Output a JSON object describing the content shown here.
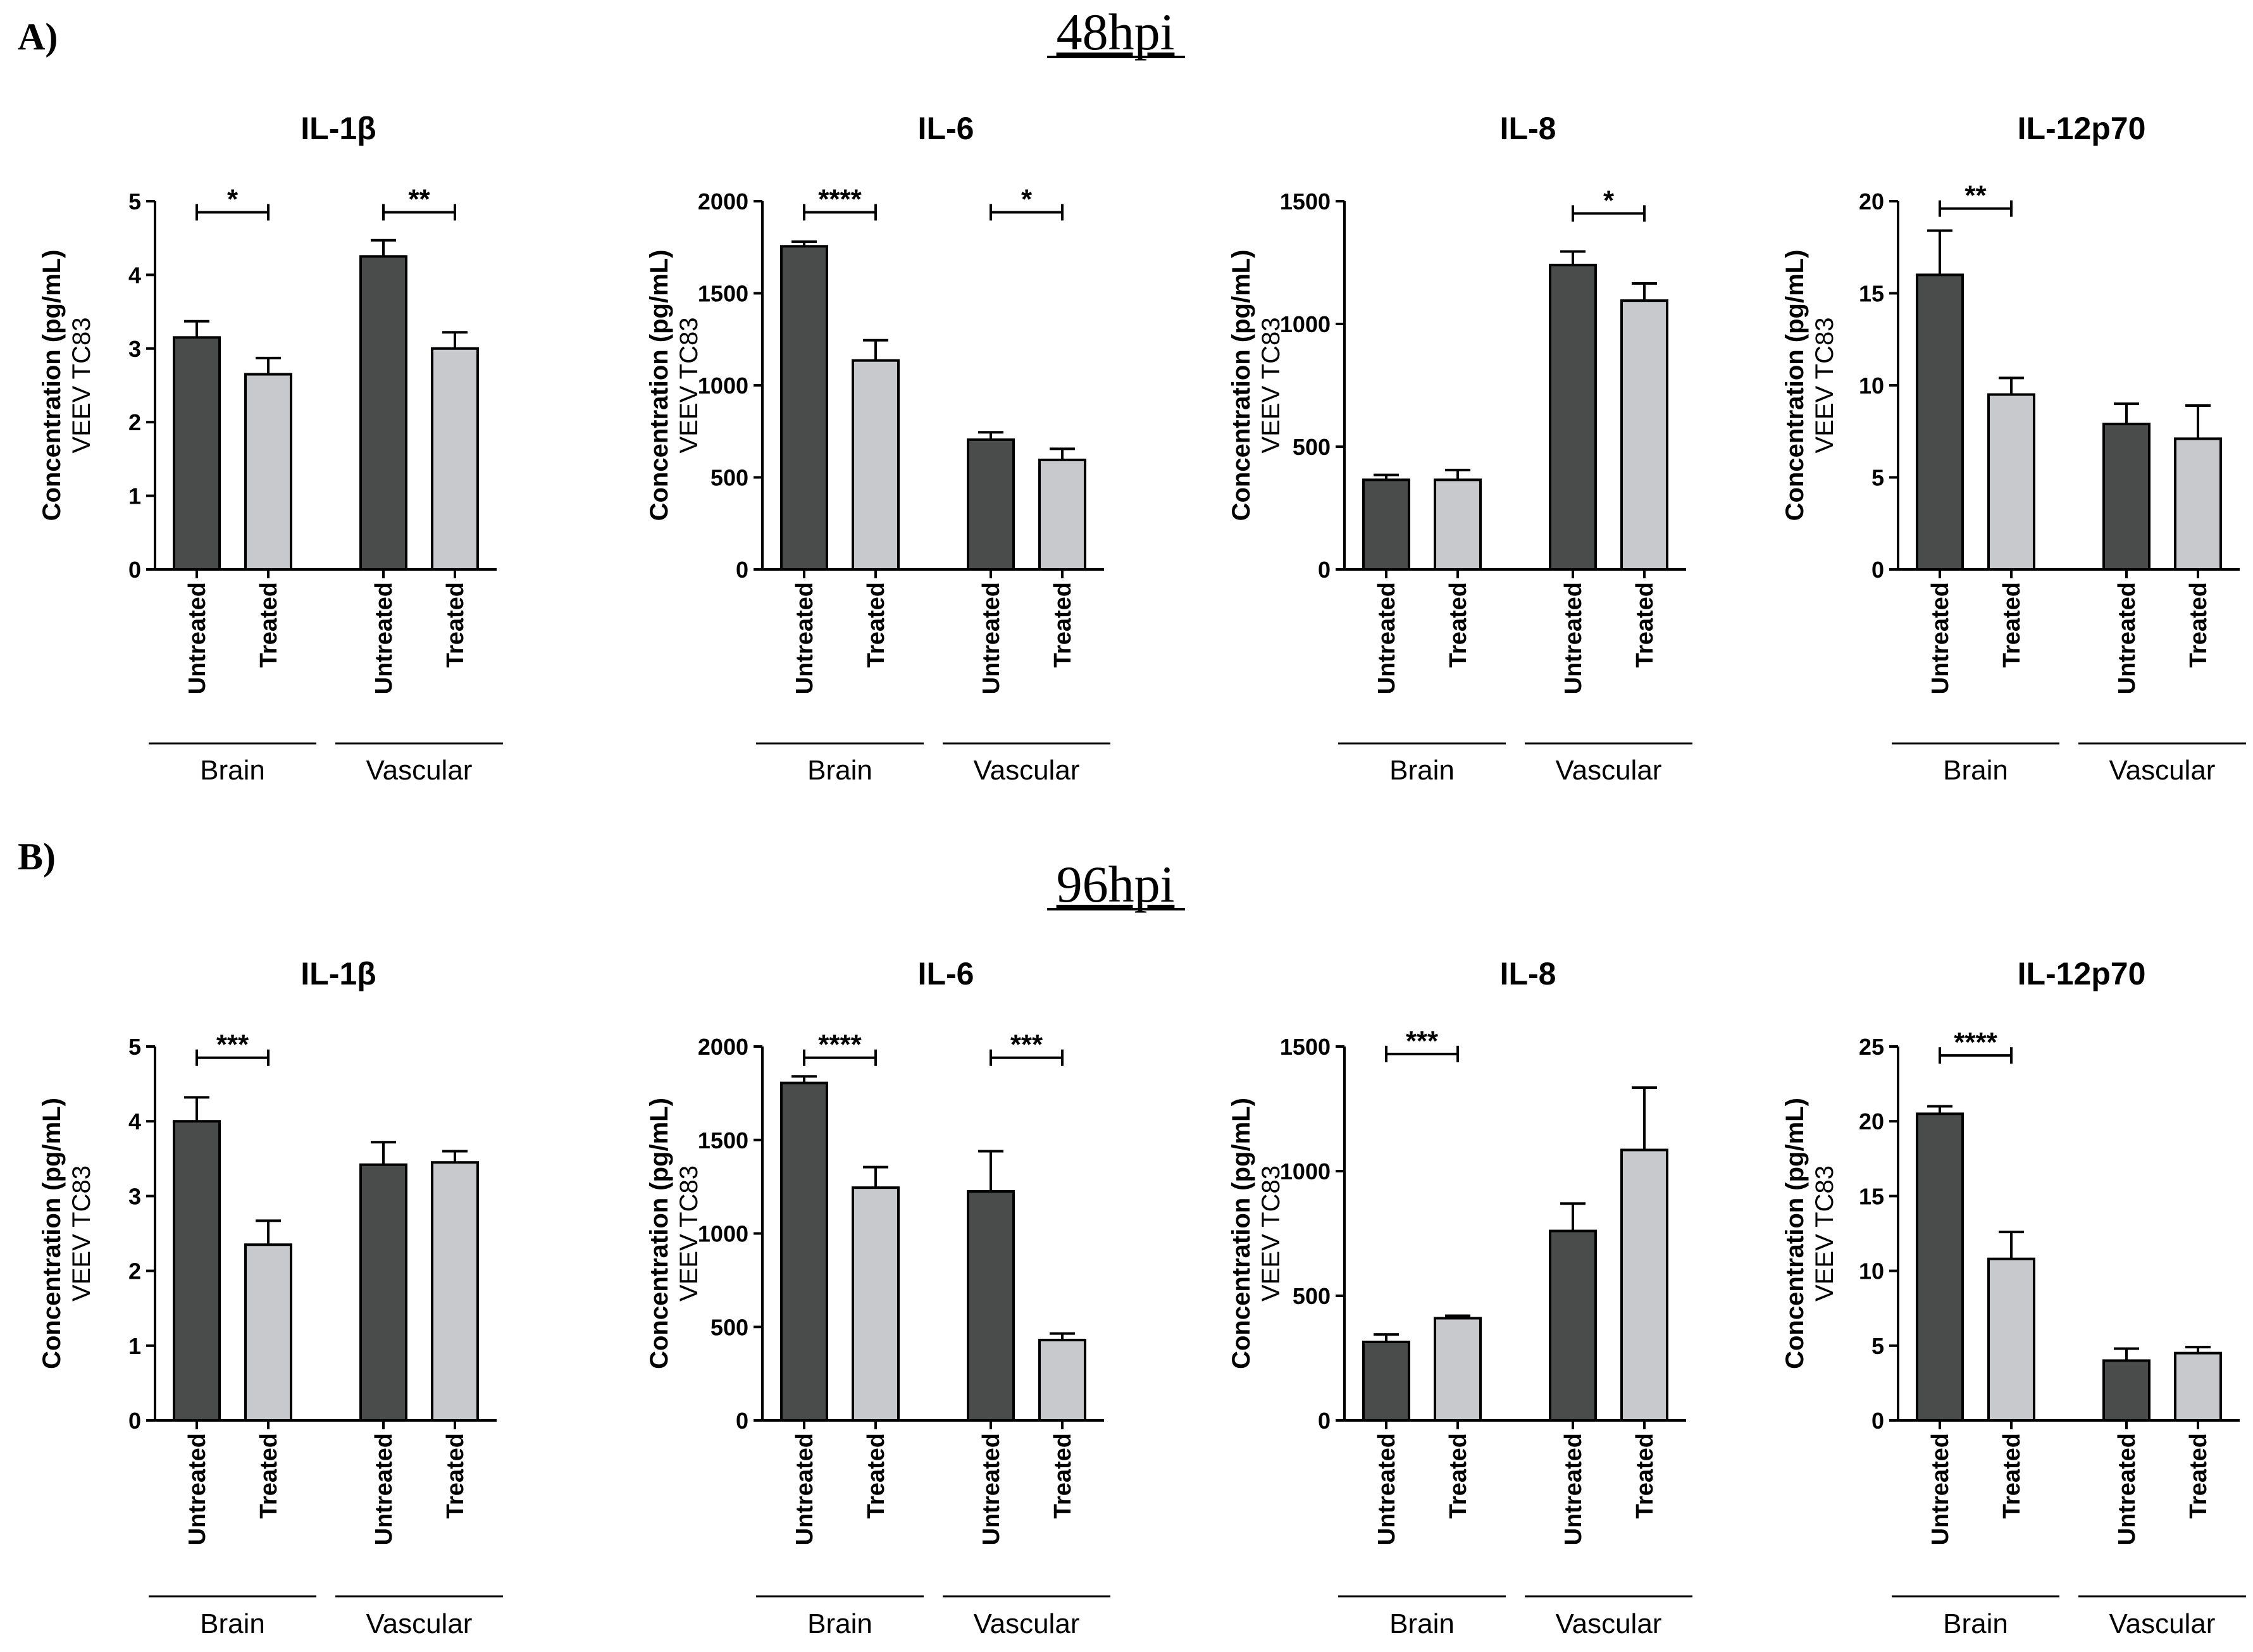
{
  "panels": [
    {
      "label": "A)",
      "title": "48hpi"
    },
    {
      "label": "B)",
      "title": "96hpi"
    }
  ],
  "colors": {
    "untreated": "#4a4c4b",
    "treated": "#c8c9cc",
    "stroke": "#000000"
  },
  "chart_data": [
    {
      "panel": "A",
      "type": "bar",
      "title": "IL-1β",
      "ylabel": "Concentration (pg/mL)",
      "ylabel2": "VEEV TC83",
      "ylim": [
        0,
        5
      ],
      "yticks": [
        0,
        1,
        2,
        3,
        4,
        5
      ],
      "categories": [
        "Untreated",
        "Treated",
        "Untreated",
        "Treated"
      ],
      "groups": [
        "Brain",
        "Vascular"
      ],
      "values": [
        3.15,
        2.65,
        4.25,
        3.0
      ],
      "errors": [
        0.22,
        0.22,
        0.22,
        0.22
      ],
      "significance": [
        {
          "from": 0,
          "to": 1,
          "label": "*",
          "level": 4.85
        },
        {
          "from": 2,
          "to": 3,
          "label": "**",
          "level": 4.85
        }
      ]
    },
    {
      "panel": "A",
      "type": "bar",
      "title": "IL-6",
      "ylabel": "Concentration (pg/mL)",
      "ylabel2": "VEEV TC83",
      "ylim": [
        0,
        2000
      ],
      "yticks": [
        0,
        500,
        1000,
        1500,
        2000
      ],
      "categories": [
        "Untreated",
        "Treated",
        "Untreated",
        "Treated"
      ],
      "groups": [
        "Brain",
        "Vascular"
      ],
      "values": [
        1755,
        1135,
        705,
        595
      ],
      "errors": [
        25,
        110,
        40,
        60
      ],
      "significance": [
        {
          "from": 0,
          "to": 1,
          "label": "****",
          "level": 1940
        },
        {
          "from": 2,
          "to": 3,
          "label": "*",
          "level": 1940
        }
      ]
    },
    {
      "panel": "A",
      "type": "bar",
      "title": "IL-8",
      "ylabel": "Concentration (pg/mL)",
      "ylabel2": "VEEV TC83",
      "ylim": [
        0,
        1500
      ],
      "yticks": [
        0,
        500,
        1000,
        1500
      ],
      "categories": [
        "Untreated",
        "Treated",
        "Untreated",
        "Treated"
      ],
      "groups": [
        "Brain",
        "Vascular"
      ],
      "values": [
        365,
        365,
        1240,
        1095
      ],
      "errors": [
        20,
        40,
        55,
        70
      ],
      "significance": [
        {
          "from": 2,
          "to": 3,
          "label": "*",
          "level": 1450
        }
      ]
    },
    {
      "panel": "A",
      "type": "bar",
      "title": "IL-12p70",
      "ylabel": "Concentration (pg/mL)",
      "ylabel2": "VEEV TC83",
      "ylim": [
        0,
        20
      ],
      "yticks": [
        0,
        5,
        10,
        15,
        20
      ],
      "categories": [
        "Untreated",
        "Treated",
        "Untreated",
        "Treated"
      ],
      "groups": [
        "Brain",
        "Vascular"
      ],
      "values": [
        16.0,
        9.5,
        7.9,
        7.1
      ],
      "errors": [
        2.4,
        0.9,
        1.1,
        1.8
      ],
      "significance": [
        {
          "from": 0,
          "to": 1,
          "label": "**",
          "level": 19.6
        }
      ]
    },
    {
      "panel": "B",
      "type": "bar",
      "title": "IL-1β",
      "ylabel": "Concentration (pg/mL)",
      "ylabel2": "VEEV TC83",
      "ylim": [
        0,
        5
      ],
      "yticks": [
        0,
        1,
        2,
        3,
        4,
        5
      ],
      "categories": [
        "Untreated",
        "Treated",
        "Untreated",
        "Treated"
      ],
      "groups": [
        "Brain",
        "Vascular"
      ],
      "values": [
        4.0,
        2.35,
        3.42,
        3.45
      ],
      "errors": [
        0.32,
        0.32,
        0.3,
        0.15
      ],
      "significance": [
        {
          "from": 0,
          "to": 1,
          "label": "***",
          "level": 4.85
        }
      ]
    },
    {
      "panel": "B",
      "type": "bar",
      "title": "IL-6",
      "ylabel": "Concentration (pg/mL)",
      "ylabel2": "VEEV TC83",
      "ylim": [
        0,
        2000
      ],
      "yticks": [
        0,
        500,
        1000,
        1500,
        2000
      ],
      "categories": [
        "Untreated",
        "Treated",
        "Untreated",
        "Treated"
      ],
      "groups": [
        "Brain",
        "Vascular"
      ],
      "values": [
        1805,
        1245,
        1225,
        430
      ],
      "errors": [
        35,
        110,
        215,
        35
      ],
      "significance": [
        {
          "from": 0,
          "to": 1,
          "label": "****",
          "level": 1940
        },
        {
          "from": 2,
          "to": 3,
          "label": "***",
          "level": 1940
        }
      ]
    },
    {
      "panel": "B",
      "type": "bar",
      "title": "IL-8",
      "ylabel": "Concentration (pg/mL)",
      "ylabel2": "VEEV TC83",
      "ylim": [
        0,
        1500
      ],
      "yticks": [
        0,
        500,
        1000,
        1500
      ],
      "categories": [
        "Untreated",
        "Treated",
        "Untreated",
        "Treated"
      ],
      "groups": [
        "Brain",
        "Vascular"
      ],
      "values": [
        315,
        410,
        760,
        1085
      ],
      "errors": [
        30,
        10,
        110,
        250
      ],
      "significance": [
        {
          "from": 0,
          "to": 1,
          "label": "***",
          "level": 1470
        }
      ]
    },
    {
      "panel": "B",
      "type": "bar",
      "title": "IL-12p70",
      "ylabel": "Concentration (pg/mL)",
      "ylabel2": "VEEV TC83",
      "ylim": [
        0,
        25
      ],
      "yticks": [
        0,
        5,
        10,
        15,
        20,
        25
      ],
      "categories": [
        "Untreated",
        "Treated",
        "Untreated",
        "Treated"
      ],
      "groups": [
        "Brain",
        "Vascular"
      ],
      "values": [
        20.5,
        10.8,
        4.0,
        4.5
      ],
      "errors": [
        0.5,
        1.8,
        0.8,
        0.4
      ],
      "significance": [
        {
          "from": 0,
          "to": 1,
          "label": "****",
          "level": 24.4
        }
      ]
    }
  ]
}
